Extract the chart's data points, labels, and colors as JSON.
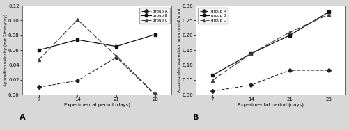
{
  "x": [
    7,
    14,
    21,
    28
  ],
  "chart_A": {
    "title": "A",
    "ylabel": "Apposition velocity (mm2/mm/day)",
    "xlabel": "Experimental period (days)",
    "ylim": [
      0,
      0.12
    ],
    "yticks": [
      0,
      0.02,
      0.04,
      0.06,
      0.08,
      0.1,
      0.12
    ],
    "group_A": [
      0.01,
      0.019,
      0.05,
      0.0
    ],
    "group_B": [
      0.06,
      0.074,
      0.065,
      0.081
    ],
    "group_C": [
      0.047,
      0.101,
      0.052,
      0.001
    ],
    "legend_loc": "upper right"
  },
  "chart_B": {
    "title": "B",
    "ylabel": "Accumulated apposition area (mm2/mm)",
    "xlabel": "Experimental period (days)",
    "ylim": [
      0,
      0.3
    ],
    "yticks": [
      0,
      0.05,
      0.1,
      0.15,
      0.2,
      0.25,
      0.3
    ],
    "group_A": [
      0.012,
      0.032,
      0.082,
      0.082
    ],
    "group_B": [
      0.065,
      0.138,
      0.2,
      0.278
    ],
    "group_C": [
      0.048,
      0.138,
      0.21,
      0.27
    ],
    "legend_loc": "upper left"
  },
  "legend_labels": [
    "group A",
    "group B",
    "group C"
  ],
  "styles": {
    "group_A": {
      "color": "#222222",
      "linestyle": "--",
      "marker": "D",
      "markersize": 3,
      "linewidth": 0.8,
      "dashes": [
        4,
        2
      ]
    },
    "group_B": {
      "color": "#111111",
      "linestyle": "-",
      "marker": "s",
      "markersize": 3,
      "linewidth": 0.9
    },
    "group_C": {
      "color": "#444444",
      "linestyle": "-",
      "marker": "^",
      "markersize": 3,
      "linewidth": 0.9
    }
  },
  "bg_color": "#d8d8d8",
  "plot_bg_color": "#ffffff"
}
